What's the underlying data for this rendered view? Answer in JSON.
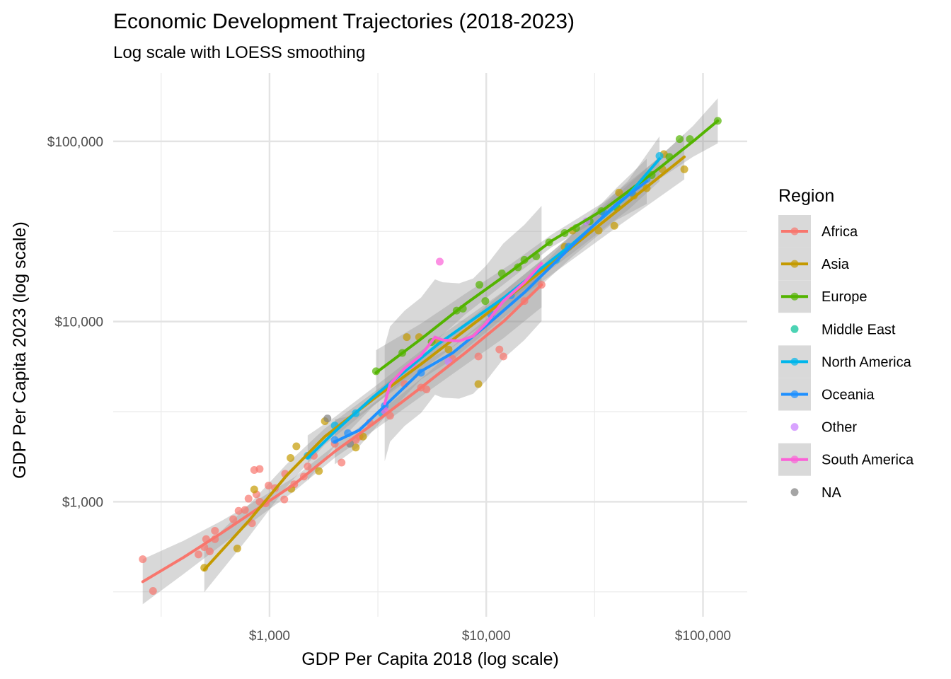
{
  "chart_data": {
    "type": "scatter",
    "title": "Economic Development Trajectories (2018-2023)",
    "subtitle": "Log scale with LOESS smoothing",
    "xlabel": "GDP Per Capita 2018 (log scale)",
    "ylabel": "GDP Per Capita 2023 (log scale)",
    "x_scale": "log10",
    "y_scale": "log10",
    "xlim": [
      190,
      160000
    ],
    "ylim": [
      230,
      240000
    ],
    "x_ticks": [
      {
        "value": 1000,
        "label": "$1,000"
      },
      {
        "value": 10000,
        "label": "$10,000"
      },
      {
        "value": 100000,
        "label": "$100,000"
      }
    ],
    "y_ticks": [
      {
        "value": 1000,
        "label": "$1,000"
      },
      {
        "value": 10000,
        "label": "$10,000"
      },
      {
        "value": 100000,
        "label": "$100,000"
      }
    ],
    "grid": true,
    "legend": {
      "title": "Region",
      "position": "right"
    },
    "series": [
      {
        "name": "Africa",
        "color": "#F8766D",
        "smooth": true,
        "band": true,
        "points": [
          [
            260,
            480
          ],
          [
            290,
            320
          ],
          [
            470,
            510
          ],
          [
            500,
            560
          ],
          [
            510,
            620
          ],
          [
            530,
            530
          ],
          [
            560,
            690
          ],
          [
            560,
            620
          ],
          [
            680,
            800
          ],
          [
            720,
            890
          ],
          [
            770,
            900
          ],
          [
            800,
            1040
          ],
          [
            830,
            760
          ],
          [
            850,
            1500
          ],
          [
            900,
            1520
          ],
          [
            870,
            1100
          ],
          [
            900,
            1000
          ],
          [
            960,
            980
          ],
          [
            990,
            1230
          ],
          [
            1060,
            1190
          ],
          [
            1170,
            1030
          ],
          [
            1180,
            1430
          ],
          [
            1300,
            1250
          ],
          [
            1440,
            1380
          ],
          [
            1500,
            1570
          ],
          [
            1600,
            1800
          ],
          [
            2000,
            2100
          ],
          [
            2150,
            1650
          ],
          [
            2500,
            2200
          ],
          [
            2600,
            2300
          ],
          [
            2900,
            2750
          ],
          [
            3600,
            3000
          ],
          [
            4200,
            4500
          ],
          [
            5000,
            4300
          ],
          [
            5300,
            4200
          ],
          [
            7000,
            6200
          ],
          [
            9200,
            6400
          ],
          [
            11500,
            7000
          ],
          [
            12000,
            6400
          ],
          [
            15000,
            13000
          ],
          [
            18000,
            16000
          ]
        ],
        "smooth_line": [
          [
            260,
            360
          ],
          [
            400,
            490
          ],
          [
            600,
            670
          ],
          [
            900,
            930
          ],
          [
            1300,
            1250
          ],
          [
            2000,
            1900
          ],
          [
            3000,
            2700
          ],
          [
            5000,
            4300
          ],
          [
            8000,
            6700
          ],
          [
            12000,
            10000
          ],
          [
            18000,
            16000
          ]
        ]
      },
      {
        "name": "Asia",
        "color": "#C49A00",
        "smooth": true,
        "band": true,
        "points": [
          [
            500,
            430
          ],
          [
            710,
            550
          ],
          [
            850,
            1170
          ],
          [
            1250,
            1750
          ],
          [
            1260,
            1180
          ],
          [
            1330,
            2030
          ],
          [
            1690,
            1480
          ],
          [
            1800,
            2800
          ],
          [
            2500,
            2000
          ],
          [
            2700,
            2300
          ],
          [
            4300,
            8200
          ],
          [
            4900,
            8200
          ],
          [
            6000,
            7800
          ],
          [
            6700,
            7000
          ],
          [
            9200,
            4500
          ],
          [
            23000,
            26000
          ],
          [
            25000,
            32000
          ],
          [
            33000,
            32000
          ],
          [
            39000,
            34000
          ],
          [
            41000,
            52000
          ],
          [
            48000,
            50000
          ],
          [
            55000,
            55000
          ],
          [
            65000,
            70000
          ],
          [
            66000,
            85000
          ],
          [
            82000,
            70000
          ]
        ],
        "smooth_line": [
          [
            500,
            420
          ],
          [
            800,
            780
          ],
          [
            1200,
            1400
          ],
          [
            1800,
            2300
          ],
          [
            3000,
            3700
          ],
          [
            5000,
            5800
          ],
          [
            10000,
            11000
          ],
          [
            20000,
            21000
          ],
          [
            40000,
            41000
          ],
          [
            82000,
            82000
          ]
        ]
      },
      {
        "name": "Europe",
        "color": "#53B400",
        "smooth": true,
        "band": true,
        "points": [
          [
            3100,
            5300
          ],
          [
            4100,
            6700
          ],
          [
            5600,
            7700
          ],
          [
            7300,
            11500
          ],
          [
            7800,
            11800
          ],
          [
            9300,
            16000
          ],
          [
            9900,
            13000
          ],
          [
            11800,
            18500
          ],
          [
            14000,
            20000
          ],
          [
            15000,
            22000
          ],
          [
            17000,
            23000
          ],
          [
            19500,
            27500
          ],
          [
            23000,
            31000
          ],
          [
            26000,
            33000
          ],
          [
            30000,
            36000
          ],
          [
            34000,
            41000
          ],
          [
            40000,
            43000
          ],
          [
            58000,
            65000
          ],
          [
            70000,
            82000
          ],
          [
            78000,
            103000
          ],
          [
            87000,
            103000
          ],
          [
            117000,
            130000
          ]
        ],
        "smooth_line": [
          [
            3100,
            5200
          ],
          [
            5000,
            8000
          ],
          [
            8000,
            12500
          ],
          [
            13000,
            19000
          ],
          [
            20000,
            28000
          ],
          [
            35000,
            42000
          ],
          [
            60000,
            68000
          ],
          [
            90000,
            100000
          ],
          [
            117000,
            130000
          ]
        ]
      },
      {
        "name": "Middle East",
        "color": "#00C094",
        "smooth": false,
        "band": false,
        "points": []
      },
      {
        "name": "North America",
        "color": "#00B6EB",
        "smooth": true,
        "band": true,
        "points": [
          [
            1500,
            1800
          ],
          [
            2000,
            2650
          ],
          [
            2500,
            3100
          ],
          [
            3300,
            3100
          ],
          [
            21000,
            22000
          ],
          [
            63000,
            83000
          ]
        ],
        "smooth_line": [
          [
            1500,
            1750
          ],
          [
            2000,
            2450
          ],
          [
            3000,
            3800
          ],
          [
            6000,
            7500
          ],
          [
            12000,
            13500
          ],
          [
            25000,
            27000
          ],
          [
            45000,
            50000
          ],
          [
            63000,
            80000
          ]
        ]
      },
      {
        "name": "Oceania",
        "color": "#1E90FF",
        "smooth": true,
        "band": true,
        "points": [
          [
            2000,
            2200
          ],
          [
            2300,
            2400
          ],
          [
            3400,
            3400
          ],
          [
            5000,
            5200
          ],
          [
            10500,
            11000
          ],
          [
            13000,
            14000
          ],
          [
            24000,
            26000
          ],
          [
            35000,
            40000
          ],
          [
            47000,
            52000
          ],
          [
            55000,
            62000
          ]
        ],
        "smooth_line": [
          [
            2000,
            2150
          ],
          [
            2600,
            2500
          ],
          [
            3400,
            3400
          ],
          [
            5000,
            5300
          ],
          [
            7000,
            6700
          ],
          [
            10000,
            9500
          ],
          [
            15000,
            14500
          ],
          [
            25000,
            26500
          ],
          [
            40000,
            45000
          ],
          [
            55000,
            60000
          ]
        ]
      },
      {
        "name": "Other",
        "color": "#C77CFF",
        "smooth": false,
        "band": false,
        "points": [
          [
            6700,
            6000
          ],
          [
            29000,
            36000
          ]
        ]
      },
      {
        "name": "South America",
        "color": "#FB61D7",
        "smooth": true,
        "band": true,
        "points": [
          [
            3400,
            3200
          ],
          [
            6100,
            21500
          ],
          [
            4600,
            5700
          ]
        ],
        "smooth_line": [
          [
            3400,
            3500
          ],
          [
            3600,
            4500
          ],
          [
            4200,
            5500
          ],
          [
            5000,
            6500
          ],
          [
            5800,
            8200
          ],
          [
            6300,
            7900
          ],
          [
            7500,
            7800
          ],
          [
            8700,
            8300
          ],
          [
            10000,
            9800
          ],
          [
            12000,
            13000
          ],
          [
            15000,
            16500
          ],
          [
            18000,
            21000
          ]
        ]
      },
      {
        "name": "NA",
        "color": "#7F7F7F",
        "smooth": false,
        "band": false,
        "points": [
          [
            1850,
            2900
          ],
          [
            2350,
            2100
          ]
        ]
      }
    ]
  }
}
